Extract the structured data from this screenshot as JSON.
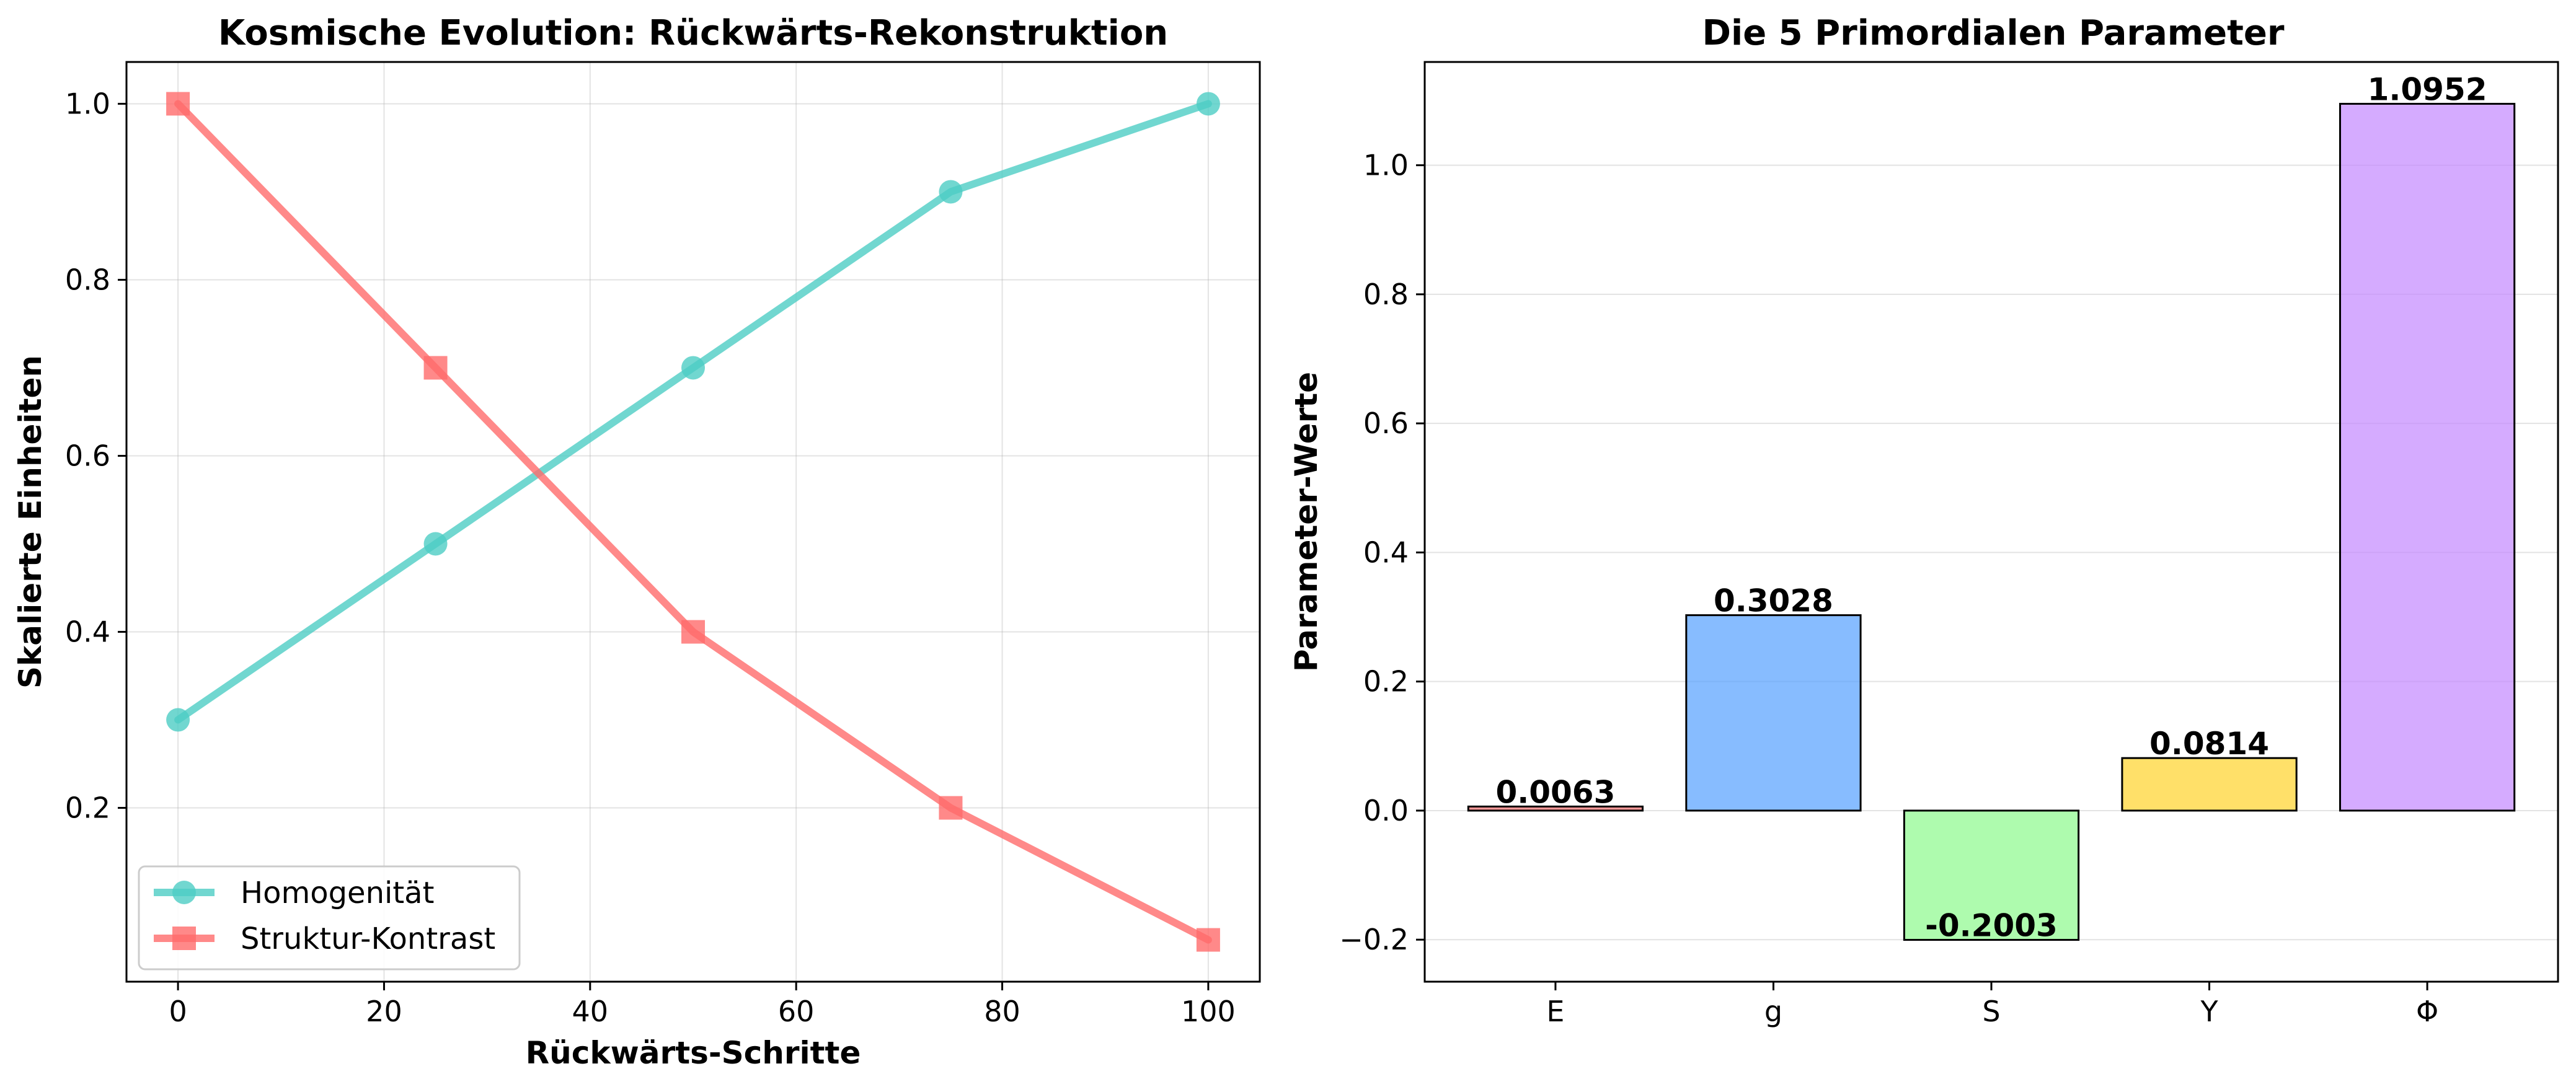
{
  "chart_data": [
    {
      "type": "line",
      "title": "Kosmische Evolution: Rückwärts-Rekonstruktion",
      "xlabel": "Rückwärts-Schritte",
      "ylabel": "Skalierte Einheiten",
      "x": [
        0,
        25,
        50,
        75,
        100
      ],
      "xlim": [
        -5,
        105
      ],
      "ylim": [
        0.0025,
        1.0475
      ],
      "xticks": [
        0,
        20,
        40,
        60,
        80,
        100
      ],
      "yticks": [
        0.2,
        0.4,
        0.6,
        0.8,
        1.0
      ],
      "grid": true,
      "legend": "lower-left",
      "series": [
        {
          "name": "Homogenität",
          "values": [
            0.3,
            0.5,
            0.7,
            0.9,
            1.0
          ],
          "color": "#4ecdc4",
          "marker": "circle"
        },
        {
          "name": "Struktur-Kontrast",
          "values": [
            1.0,
            0.7,
            0.4,
            0.2,
            0.05
          ],
          "color": "#ff6b6b",
          "marker": "square"
        }
      ]
    },
    {
      "type": "bar",
      "title": "Die 5 Primordialen Parameter",
      "xlabel": "",
      "ylabel": "Parameter-Werte",
      "categories": [
        "E",
        "g",
        "S",
        "Y",
        "Φ"
      ],
      "values": [
        0.0063,
        0.3028,
        -0.2003,
        0.0814,
        1.0952
      ],
      "value_labels": [
        "0.0063",
        "0.3028",
        "-0.2003",
        "0.0814",
        "1.0952"
      ],
      "colors": [
        "#ff6b6b",
        "#54a0ff",
        "#8cfa8c",
        "#ffd32a",
        "#c387ff"
      ],
      "ylim": [
        -0.2651,
        1.16
      ],
      "yticks": [
        -0.2,
        0.0,
        0.2,
        0.4,
        0.6,
        0.8,
        1.0
      ],
      "grid": true
    }
  ]
}
